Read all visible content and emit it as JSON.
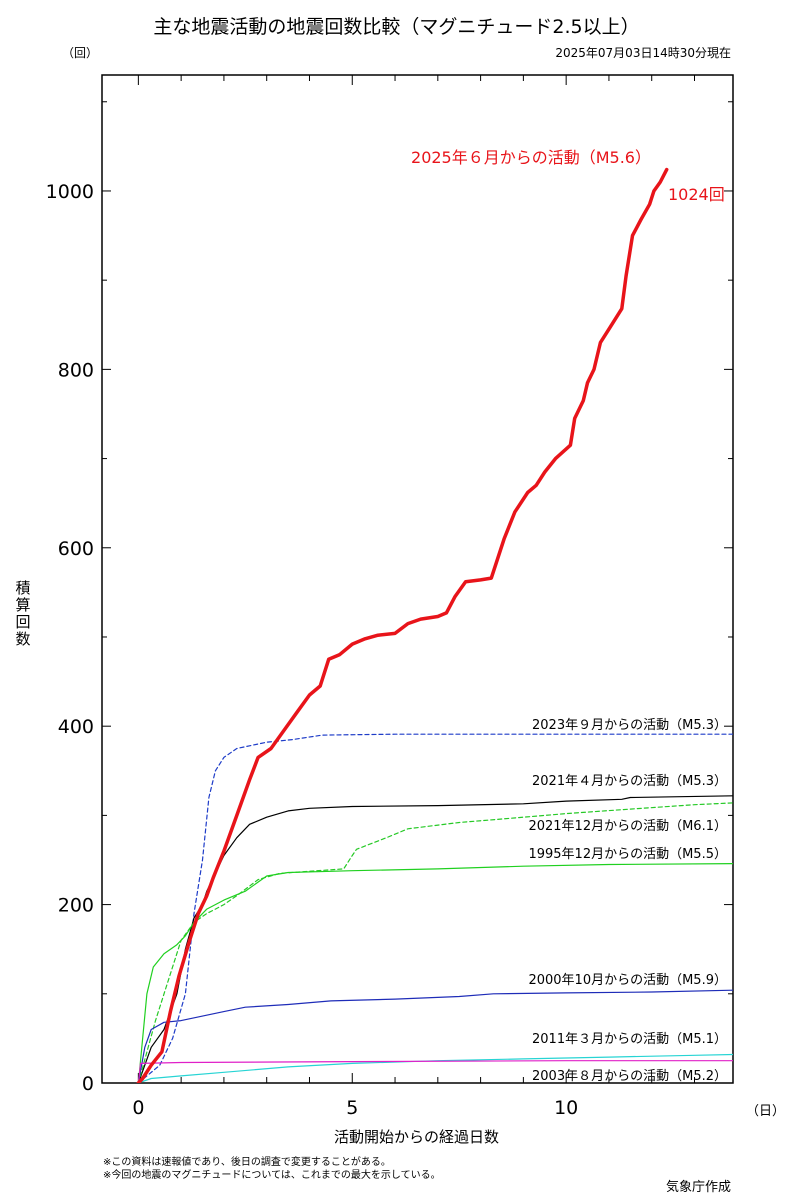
{
  "header": {
    "title": "主な地震活動の地震回数比較（マグニチュード2.5以上）",
    "timestamp": "2025年07月03日14時30分現在",
    "y_unit": "（回）",
    "x_unit": "（日）"
  },
  "footer": {
    "note1": "※この資料は速報値であり、後日の調査で変更することがある。",
    "note2": "※今回の地震のマグニチュードについては、これまでの最大を示している。",
    "credit": "気象庁作成"
  },
  "chart_data": {
    "type": "line",
    "title": "主な地震活動の地震回数比較（マグニチュード2.5以上）",
    "xlabel": "活動開始からの経過日数",
    "ylabel": "積算回数",
    "xlim": [
      -0.85,
      13.9
    ],
    "ylim": [
      0,
      1130
    ],
    "xticks": [
      0,
      5,
      10
    ],
    "yticks": [
      0,
      200,
      400,
      600,
      800,
      1000
    ],
    "grid": false,
    "series": [
      {
        "name": "2025年６月からの活動（M5.6）",
        "color": "#e8141a",
        "dashed": false,
        "width": 3.5,
        "emphasis": true,
        "end_label": "1024回",
        "points": [
          [
            0,
            0
          ],
          [
            0.1,
            5
          ],
          [
            0.3,
            20
          ],
          [
            0.55,
            35
          ],
          [
            0.75,
            80
          ],
          [
            0.95,
            120
          ],
          [
            1.2,
            160
          ],
          [
            1.4,
            190
          ],
          [
            1.6,
            210
          ],
          [
            1.75,
            230
          ],
          [
            2.0,
            260
          ],
          [
            2.3,
            300
          ],
          [
            2.6,
            340
          ],
          [
            2.8,
            365
          ],
          [
            3.1,
            375
          ],
          [
            3.4,
            395
          ],
          [
            3.7,
            415
          ],
          [
            4.0,
            435
          ],
          [
            4.25,
            445
          ],
          [
            4.45,
            475
          ],
          [
            4.7,
            480
          ],
          [
            5.0,
            492
          ],
          [
            5.3,
            498
          ],
          [
            5.6,
            502
          ],
          [
            6.0,
            504
          ],
          [
            6.3,
            515
          ],
          [
            6.6,
            520
          ],
          [
            7.0,
            523
          ],
          [
            7.2,
            527
          ],
          [
            7.4,
            545
          ],
          [
            7.65,
            562
          ],
          [
            8.0,
            564
          ],
          [
            8.25,
            566
          ],
          [
            8.55,
            610
          ],
          [
            8.8,
            640
          ],
          [
            9.1,
            662
          ],
          [
            9.3,
            670
          ],
          [
            9.5,
            685
          ],
          [
            9.75,
            700
          ],
          [
            10.1,
            715
          ],
          [
            10.2,
            745
          ],
          [
            10.4,
            765
          ],
          [
            10.5,
            785
          ],
          [
            10.65,
            800
          ],
          [
            10.8,
            830
          ],
          [
            11.0,
            845
          ],
          [
            11.3,
            868
          ],
          [
            11.4,
            905
          ],
          [
            11.55,
            950
          ],
          [
            11.75,
            968
          ],
          [
            11.95,
            985
          ],
          [
            12.05,
            1000
          ],
          [
            12.2,
            1010
          ],
          [
            12.35,
            1024
          ]
        ]
      },
      {
        "name": "2023年９月からの活動（M5.3）",
        "color": "#1e3cc8",
        "dashed": true,
        "width": 1.2,
        "points": [
          [
            0,
            0
          ],
          [
            0.5,
            20
          ],
          [
            0.8,
            50
          ],
          [
            1.1,
            100
          ],
          [
            1.3,
            190
          ],
          [
            1.5,
            250
          ],
          [
            1.65,
            320
          ],
          [
            1.8,
            350
          ],
          [
            2.0,
            365
          ],
          [
            2.3,
            375
          ],
          [
            2.6,
            378
          ],
          [
            3.0,
            382
          ],
          [
            3.6,
            385
          ],
          [
            4.3,
            390
          ],
          [
            6.0,
            391
          ],
          [
            8.0,
            391
          ],
          [
            10.0,
            391
          ],
          [
            12.0,
            391
          ],
          [
            13.9,
            391
          ]
        ]
      },
      {
        "name": "2021年４月からの活動（M5.3）",
        "color": "#000000",
        "dashed": false,
        "width": 1.2,
        "points": [
          [
            0,
            0
          ],
          [
            0.3,
            40
          ],
          [
            0.6,
            60
          ],
          [
            0.9,
            100
          ],
          [
            1.1,
            150
          ],
          [
            1.3,
            185
          ],
          [
            1.5,
            200
          ],
          [
            1.6,
            215
          ],
          [
            1.8,
            235
          ],
          [
            2.0,
            255
          ],
          [
            2.3,
            275
          ],
          [
            2.6,
            290
          ],
          [
            3.0,
            298
          ],
          [
            3.5,
            305
          ],
          [
            4.0,
            308
          ],
          [
            5.0,
            310
          ],
          [
            7.0,
            311
          ],
          [
            9.0,
            313
          ],
          [
            10.0,
            316
          ],
          [
            11.3,
            318
          ],
          [
            11.5,
            320
          ],
          [
            13.9,
            322
          ]
        ]
      },
      {
        "name": "2021年12月からの活動（M6.1）",
        "color": "#26c926",
        "dashed": true,
        "width": 1.2,
        "points": [
          [
            0,
            0
          ],
          [
            0.4,
            70
          ],
          [
            0.7,
            115
          ],
          [
            1.0,
            160
          ],
          [
            1.3,
            180
          ],
          [
            1.6,
            190
          ],
          [
            1.8,
            195
          ],
          [
            2.0,
            200
          ],
          [
            2.3,
            210
          ],
          [
            2.8,
            228
          ],
          [
            3.3,
            235
          ],
          [
            4.8,
            240
          ],
          [
            5.0,
            255
          ],
          [
            5.1,
            262
          ],
          [
            5.8,
            275
          ],
          [
            6.3,
            285
          ],
          [
            7.5,
            292
          ],
          [
            8.5,
            296
          ],
          [
            10.0,
            302
          ],
          [
            11.5,
            307
          ],
          [
            13.0,
            312
          ],
          [
            13.9,
            314
          ]
        ]
      },
      {
        "name": "1995年12月からの活動（M5.5）",
        "color": "#20d020",
        "dashed": false,
        "width": 1.2,
        "points": [
          [
            0,
            0
          ],
          [
            0.2,
            100
          ],
          [
            0.35,
            130
          ],
          [
            0.6,
            145
          ],
          [
            0.9,
            155
          ],
          [
            1.1,
            165
          ],
          [
            1.3,
            180
          ],
          [
            1.6,
            195
          ],
          [
            2.0,
            205
          ],
          [
            2.5,
            215
          ],
          [
            3.0,
            232
          ],
          [
            3.5,
            236
          ],
          [
            5.0,
            238
          ],
          [
            7.0,
            240
          ],
          [
            9.0,
            243
          ],
          [
            11.0,
            245
          ],
          [
            13.9,
            246
          ]
        ]
      },
      {
        "name": "2000年10月からの活動（M5.9）",
        "color": "#1e2cb8",
        "dashed": false,
        "width": 1.2,
        "points": [
          [
            0,
            0
          ],
          [
            0.15,
            40
          ],
          [
            0.3,
            60
          ],
          [
            0.6,
            68
          ],
          [
            1.0,
            70
          ],
          [
            1.5,
            75
          ],
          [
            2.0,
            80
          ],
          [
            2.5,
            85
          ],
          [
            3.5,
            88
          ],
          [
            4.5,
            92
          ],
          [
            6.0,
            94
          ],
          [
            7.5,
            97
          ],
          [
            8.3,
            100
          ],
          [
            10.0,
            101
          ],
          [
            12.0,
            102
          ],
          [
            13.9,
            104
          ]
        ]
      },
      {
        "name": "2011年３月からの活動（M5.1）",
        "color": "#27d4d4",
        "dashed": false,
        "width": 1.2,
        "points": [
          [
            0,
            0
          ],
          [
            0.3,
            5
          ],
          [
            1.0,
            8
          ],
          [
            2.0,
            12
          ],
          [
            3.5,
            18
          ],
          [
            5.0,
            22
          ],
          [
            7.0,
            25
          ],
          [
            9.0,
            27
          ],
          [
            11.0,
            29
          ],
          [
            13.0,
            31
          ],
          [
            13.9,
            32
          ]
        ]
      },
      {
        "name": "2003年８月からの活動（M5.2）",
        "color": "#e020c8",
        "dashed": false,
        "width": 1.2,
        "points": [
          [
            0,
            0
          ],
          [
            0.05,
            22
          ],
          [
            1.0,
            23
          ],
          [
            5.0,
            24
          ],
          [
            10.0,
            25
          ],
          [
            13.9,
            25
          ]
        ]
      }
    ]
  }
}
